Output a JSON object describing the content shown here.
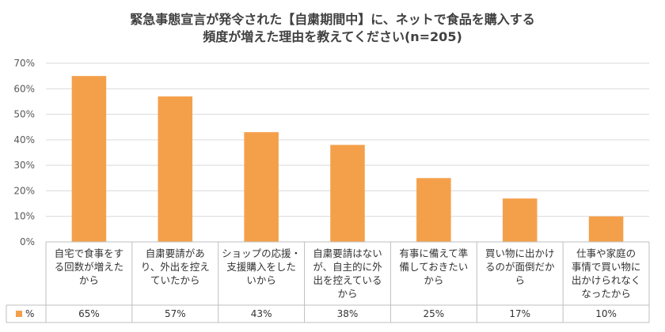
{
  "chart_data": {
    "type": "bar",
    "title_lines": [
      "緊急事態宣言が発令された【自粛期間中】に、ネットで食品を購入する",
      "頻度が増えた理由を教えてください(n=205)"
    ],
    "categories": [
      [
        "自宅で食事をす",
        "る回数が増えた",
        "から"
      ],
      [
        "自粛要請があ",
        "り、外出を控え",
        "ていたから"
      ],
      [
        "ショップの応援・",
        "支援購入をした",
        "いから"
      ],
      [
        "自粛要請はない",
        "が、自主的に外",
        "出を控えている",
        "から"
      ],
      [
        "有事に備えて準",
        "備しておきたい",
        "から"
      ],
      [
        "買い物に出かけ",
        "るのが面倒だか",
        "ら"
      ],
      [
        "仕事や家庭の",
        "事情で買い物に",
        "出かけられなく",
        "なったから"
      ]
    ],
    "series": [
      {
        "name": "%",
        "values": [
          65,
          57,
          43,
          38,
          25,
          17,
          10
        ],
        "labels": [
          "65%",
          "57%",
          "43%",
          "38%",
          "25%",
          "17%",
          "10%"
        ],
        "color": "#F4A04B"
      }
    ],
    "ylim": [
      0,
      70
    ],
    "yticks": [
      0,
      10,
      20,
      30,
      40,
      50,
      60,
      70
    ],
    "ytick_labels": [
      "0%",
      "10%",
      "20%",
      "30%",
      "40%",
      "50%",
      "60%",
      "70%"
    ],
    "grid": true,
    "legend": "data-table"
  }
}
